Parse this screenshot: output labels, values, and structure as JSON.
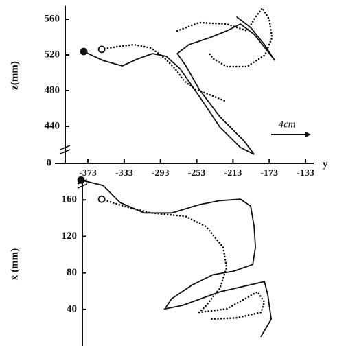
{
  "chart_data": [
    {
      "type": "line",
      "ylabel": "z(mm)",
      "xlabel": "y",
      "axis_break_label": "0",
      "xlim": [
        -395,
        -130
      ],
      "ylim": [
        405,
        575
      ],
      "xticks": [
        -373,
        -333,
        -293,
        -253,
        -213,
        -173,
        -133
      ],
      "yticks": [
        440,
        480,
        520,
        560
      ],
      "annotation": "4cm",
      "series": [
        {
          "color": "#111111",
          "style": "solid",
          "start_marker": "filled",
          "x": [
            -377.5,
            -356.3,
            -335.1,
            -318.5,
            -301.8,
            -286.6,
            -271.5,
            -250.3,
            -227.5,
            -204.8,
            -189.7,
            -201.0,
            -227.5,
            -250.3,
            -265.4,
            -274.5,
            -261.6,
            -238.9,
            -219.9,
            -204.8,
            -189.7,
            -174.5,
            -166.9,
            -178.3,
            -193.5,
            -208.6
          ],
          "values": [
            523.8,
            513.8,
            507.7,
            515.4,
            521.5,
            518.5,
            504.6,
            473.8,
            439.2,
            416.2,
            408.5,
            423.8,
            450.8,
            481.5,
            508.5,
            521.5,
            531.5,
            539.2,
            546.9,
            554.6,
            543.1,
            523.8,
            513.8,
            531.5,
            550.8,
            562.3
          ]
        },
        {
          "color": "#111111",
          "style": "dotted",
          "start_marker": "open",
          "x": [
            -357.8,
            -341.2,
            -322.2,
            -303.3,
            -288.2,
            -276.8,
            -266.9,
            -254.1,
            -238.9,
            -220.0,
            null,
            -274.5,
            -250.3,
            -220.0,
            -197.3,
            -188.2,
            -180.6,
            -173.0,
            -170.0,
            -177.6,
            -197.3,
            -220.0,
            -235.0,
            -239.0
          ],
          "values": [
            526.2,
            529.2,
            531.5,
            527.7,
            516.2,
            504.6,
            490.8,
            481.5,
            475.4,
            467.7,
            null,
            546.9,
            556.2,
            554.6,
            546.9,
            562.3,
            572.3,
            560.0,
            539.2,
            520.0,
            507.0,
            507.0,
            516.0,
            521.5
          ]
        }
      ]
    },
    {
      "type": "line",
      "ylabel": "x (mm)",
      "xlim": [
        -395,
        -130
      ],
      "ylim": [
        0,
        182
      ],
      "yticks": [
        40,
        80,
        120,
        160
      ],
      "series": [
        {
          "color": "#111111",
          "style": "solid",
          "start_marker": "filled",
          "x": [
            -380.6,
            -356.3,
            -337.4,
            -310.9,
            -280.6,
            -250.3,
            -227.5,
            -204.8,
            -193.5,
            -189.7,
            -188.2,
            -191.2,
            -212.4,
            -235.2,
            -257.9,
            -280.6,
            -288.2,
            -269.2,
            -227.5,
            -178.3,
            -174.5,
            -170.8,
            -182.1
          ],
          "values": [
            181.8,
            175.8,
            157.0,
            145.7,
            145.7,
            154.7,
            159.2,
            160.8,
            153.2,
            130.7,
            108.1,
            89.3,
            81.8,
            78.0,
            66.8,
            51.7,
            40.5,
            44.2,
            59.2,
            70.5,
            55.5,
            29.2,
            10.4
          ]
        },
        {
          "color": "#111111",
          "style": "dotted",
          "start_marker": "open",
          "x": [
            -357.8,
            -333.6,
            -303.3,
            -265.4,
            -242.7,
            -223.8,
            -220.0,
            -227.5,
            -242.7,
            -250.3,
            -220.0,
            -185.9,
            -178.3,
            -182.1,
            -208.6,
            -238.9
          ],
          "values": [
            160.8,
            153.2,
            145.7,
            142.0,
            130.7,
            108.1,
            85.6,
            63.0,
            44.2,
            36.7,
            40.5,
            59.2,
            48.0,
            36.7,
            30.7,
            29.2
          ]
        }
      ]
    }
  ]
}
